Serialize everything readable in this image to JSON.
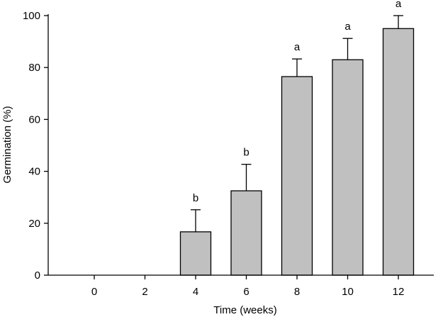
{
  "chart_data": {
    "type": "bar",
    "xlabel": "Time (weeks)",
    "ylabel": "Germination (%)",
    "ylim": [
      0,
      100
    ],
    "yticks": [
      0,
      20,
      40,
      60,
      80,
      100
    ],
    "categories": [
      "0",
      "2",
      "4",
      "6",
      "8",
      "10",
      "12"
    ],
    "values": [
      0,
      0,
      16.7,
      32.5,
      76.5,
      83.0,
      95.0
    ],
    "error_plus": [
      0,
      0,
      8.5,
      10.2,
      6.8,
      8.2,
      5.0
    ],
    "significance": [
      "",
      "",
      "b",
      "b",
      "a",
      "a",
      "a"
    ],
    "bar_color": "#c0c0c0",
    "grid": false,
    "legend": "none"
  }
}
